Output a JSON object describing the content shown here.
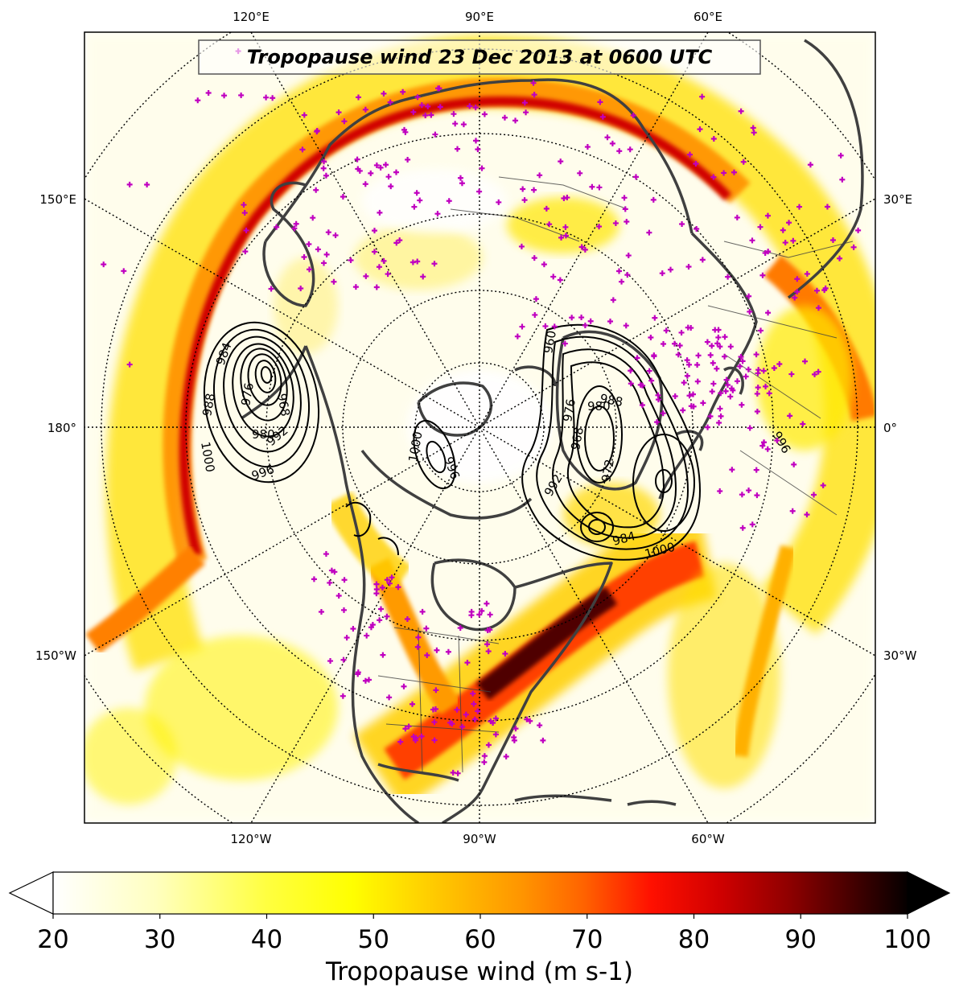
{
  "title": "Tropopause wind 23 Dec 2013 at 0600 UTC",
  "longitude_labels": {
    "top": [
      "120°E",
      "90°E",
      "60°E"
    ],
    "bottom": [
      "120°W",
      "90°W",
      "60°W"
    ],
    "left": [
      "150°E",
      "180°",
      "150°W"
    ],
    "right": [
      "30°E",
      "0°",
      "30°W"
    ]
  },
  "contour_labels": [
    "984",
    "976",
    "968",
    "988",
    "980",
    "1000",
    "996",
    "992",
    "1000",
    "996",
    "988",
    "980",
    "960",
    "976",
    "968",
    "972",
    "992",
    "984",
    "1000",
    "996"
  ],
  "colorbar": {
    "label": "Tropopause wind (m s-1)",
    "ticks": [
      "20",
      "30",
      "40",
      "50",
      "60",
      "70",
      "80",
      "90",
      "100"
    ],
    "min": 20,
    "max": 100,
    "extend": "both",
    "colormap": "hot_r",
    "colors": [
      "#ffffff",
      "#ffffcc",
      "#ffff66",
      "#ffff00",
      "#ffd700",
      "#ffb000",
      "#ff8800",
      "#ff5500",
      "#ff0000",
      "#cc0000",
      "#990000",
      "#660000",
      "#330000",
      "#000000"
    ]
  },
  "station_marker_color": "#c000c0",
  "coastline_color": "#404040",
  "contour_color": "#000000"
}
